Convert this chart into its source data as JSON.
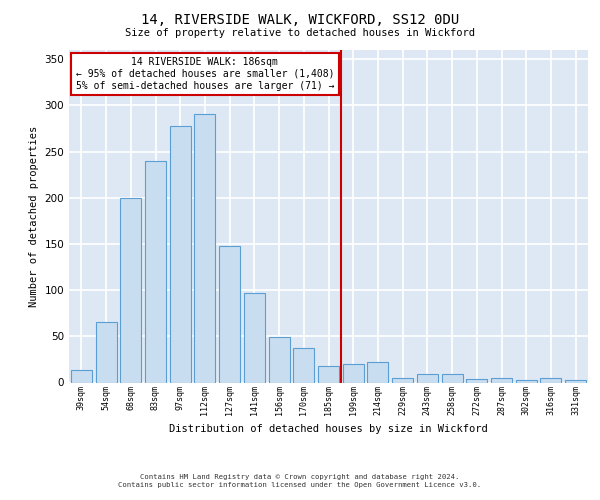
{
  "title_line1": "14, RIVERSIDE WALK, WICKFORD, SS12 0DU",
  "title_line2": "Size of property relative to detached houses in Wickford",
  "xlabel": "Distribution of detached houses by size in Wickford",
  "ylabel": "Number of detached properties",
  "categories": [
    "39sqm",
    "54sqm",
    "68sqm",
    "83sqm",
    "97sqm",
    "112sqm",
    "127sqm",
    "141sqm",
    "156sqm",
    "170sqm",
    "185sqm",
    "199sqm",
    "214sqm",
    "229sqm",
    "243sqm",
    "258sqm",
    "272sqm",
    "287sqm",
    "302sqm",
    "316sqm",
    "331sqm"
  ],
  "values": [
    13,
    65,
    200,
    240,
    278,
    291,
    148,
    97,
    49,
    37,
    18,
    20,
    22,
    5,
    9,
    9,
    4,
    5,
    3,
    5,
    3
  ],
  "bar_color": "#c9ddf0",
  "bar_edge_color": "#5a9fd4",
  "vline_x_index": 10.5,
  "vline_color": "#cc0000",
  "annotation_text": "14 RIVERSIDE WALK: 186sqm\n← 95% of detached houses are smaller (1,408)\n5% of semi-detached houses are larger (71) →",
  "annotation_box_color": "#cc0000",
  "ylim": [
    0,
    360
  ],
  "yticks": [
    0,
    50,
    100,
    150,
    200,
    250,
    300,
    350
  ],
  "background_color": "#dde8f4",
  "grid_color": "#ffffff",
  "footer_line1": "Contains HM Land Registry data © Crown copyright and database right 2024.",
  "footer_line2": "Contains public sector information licensed under the Open Government Licence v3.0."
}
